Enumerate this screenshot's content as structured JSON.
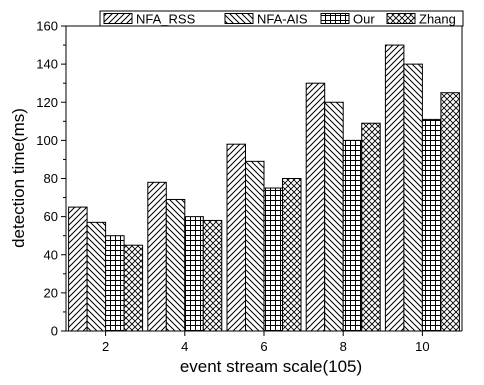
{
  "chart_data": {
    "type": "bar",
    "title": "",
    "xlabel": "event stream scale(105)",
    "ylabel": "detection time(ms)",
    "categories": [
      "2",
      "4",
      "6",
      "8",
      "10"
    ],
    "ylim": [
      0,
      160
    ],
    "yticks": [
      0,
      20,
      40,
      60,
      80,
      100,
      120,
      140,
      160
    ],
    "legend_position": "top-right",
    "grid": false,
    "series": [
      {
        "name": "NFA_RSS",
        "pattern": "forward-diagonal",
        "values": [
          65,
          78,
          98,
          130,
          150
        ]
      },
      {
        "name": "NFA-AIS",
        "pattern": "back-diagonal",
        "values": [
          57,
          69,
          89,
          120,
          140
        ]
      },
      {
        "name": "Our",
        "pattern": "grid",
        "values": [
          50,
          60,
          75,
          100,
          111
        ]
      },
      {
        "name": "Zhang",
        "pattern": "cross-hatch",
        "values": [
          45,
          58,
          80,
          109,
          125
        ]
      }
    ]
  }
}
